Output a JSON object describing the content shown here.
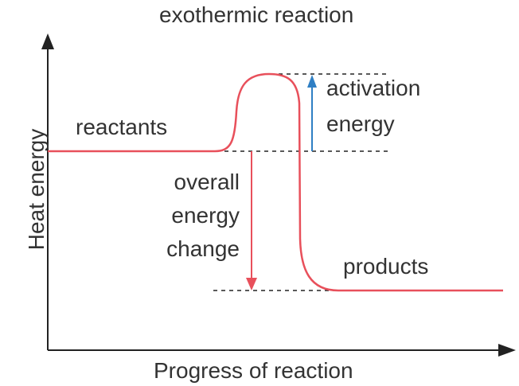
{
  "title": "exothermic reaction",
  "x_axis_label": "Progress of reaction",
  "y_axis_label": "Heat energy",
  "labels": {
    "reactants": "reactants",
    "products": "products",
    "activation_line1": "activation",
    "activation_line2": "energy",
    "change_line1": "overall",
    "change_line2": "energy",
    "change_line3": "change"
  },
  "colors": {
    "curve": "#e8505b",
    "activation_arrow": "#2f7fc4",
    "change_arrow": "#e8505b",
    "axes": "#222222",
    "text": "#333333"
  }
}
